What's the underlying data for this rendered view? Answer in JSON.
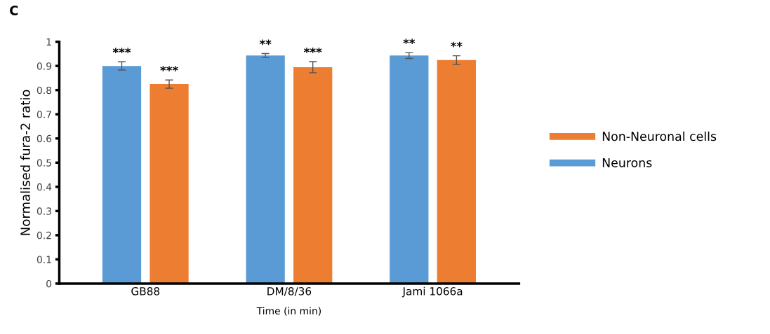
{
  "chart_data": {
    "type": "bar",
    "title": "C",
    "xlabel": "Time (in min)",
    "ylabel": "Normalised fura-2 ratio",
    "categories": [
      "GB88",
      "DM/8/36",
      "Jami 1066a"
    ],
    "series": [
      {
        "name": "Neurons",
        "color": "#5b9bd5",
        "values": [
          0.9,
          0.943,
          0.943
        ],
        "errors": [
          0.017,
          0.008,
          0.012
        ],
        "value_labels": [
          "***",
          "**",
          "**"
        ]
      },
      {
        "name": "Non-Neuronal cells",
        "color": "#ed7d31",
        "values": [
          0.825,
          0.895,
          0.924
        ],
        "errors": [
          0.017,
          0.023,
          0.018
        ],
        "value_labels": [
          "***",
          "***",
          "**"
        ]
      }
    ],
    "ylim": [
      0,
      1
    ],
    "yticks": [
      0,
      0.1,
      0.2,
      0.3,
      0.4,
      0.5,
      0.6,
      0.7,
      0.8,
      0.9,
      1
    ],
    "grid": false,
    "legend": "right"
  }
}
